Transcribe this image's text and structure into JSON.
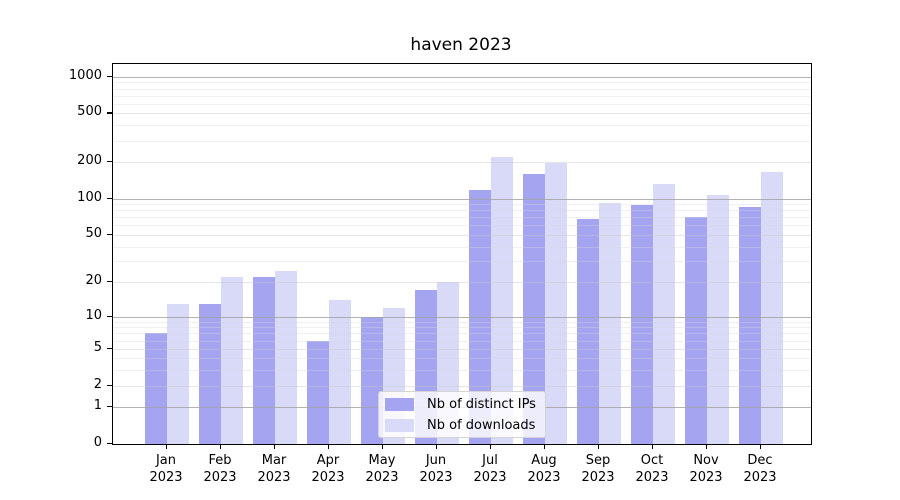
{
  "chart_data": {
    "type": "bar",
    "title": "haven 2023",
    "x_categories": [
      "Jan",
      "Feb",
      "Mar",
      "Apr",
      "May",
      "Jun",
      "Jul",
      "Aug",
      "Sep",
      "Oct",
      "Nov",
      "Dec"
    ],
    "x_year": "2023",
    "series": [
      {
        "name": "Nb of distinct IPs",
        "color": "#a4a4f1",
        "values": [
          7,
          13,
          22,
          6,
          10,
          17,
          117,
          158,
          68,
          88,
          70,
          86
        ]
      },
      {
        "name": "Nb of downloads",
        "color": "#d9d9f8",
        "values": [
          13,
          22,
          25,
          14,
          12,
          20,
          218,
          195,
          92,
          132,
          108,
          165
        ]
      }
    ],
    "y_axis": {
      "scale": "log10(1+x)",
      "labeled_ticks": [
        0,
        1,
        2,
        5,
        10,
        20,
        50,
        100,
        200,
        500,
        1000
      ],
      "major_grid": [
        1,
        10,
        100,
        1000
      ],
      "light_grid": [
        2,
        5,
        20,
        50,
        200,
        500
      ],
      "minor_grid": [
        3,
        4,
        6,
        7,
        8,
        9,
        30,
        40,
        60,
        70,
        80,
        90,
        300,
        400,
        600,
        700,
        800,
        900
      ],
      "ylim": [
        0,
        1250
      ]
    },
    "legend": {
      "position": "lower center"
    },
    "grid": true
  },
  "colors": {
    "major_grid": "#a5a5a5",
    "minor_grid": "#dddddd",
    "spine": "#000000",
    "legend_border": "#d4d4d4",
    "background": "#ffffff"
  }
}
